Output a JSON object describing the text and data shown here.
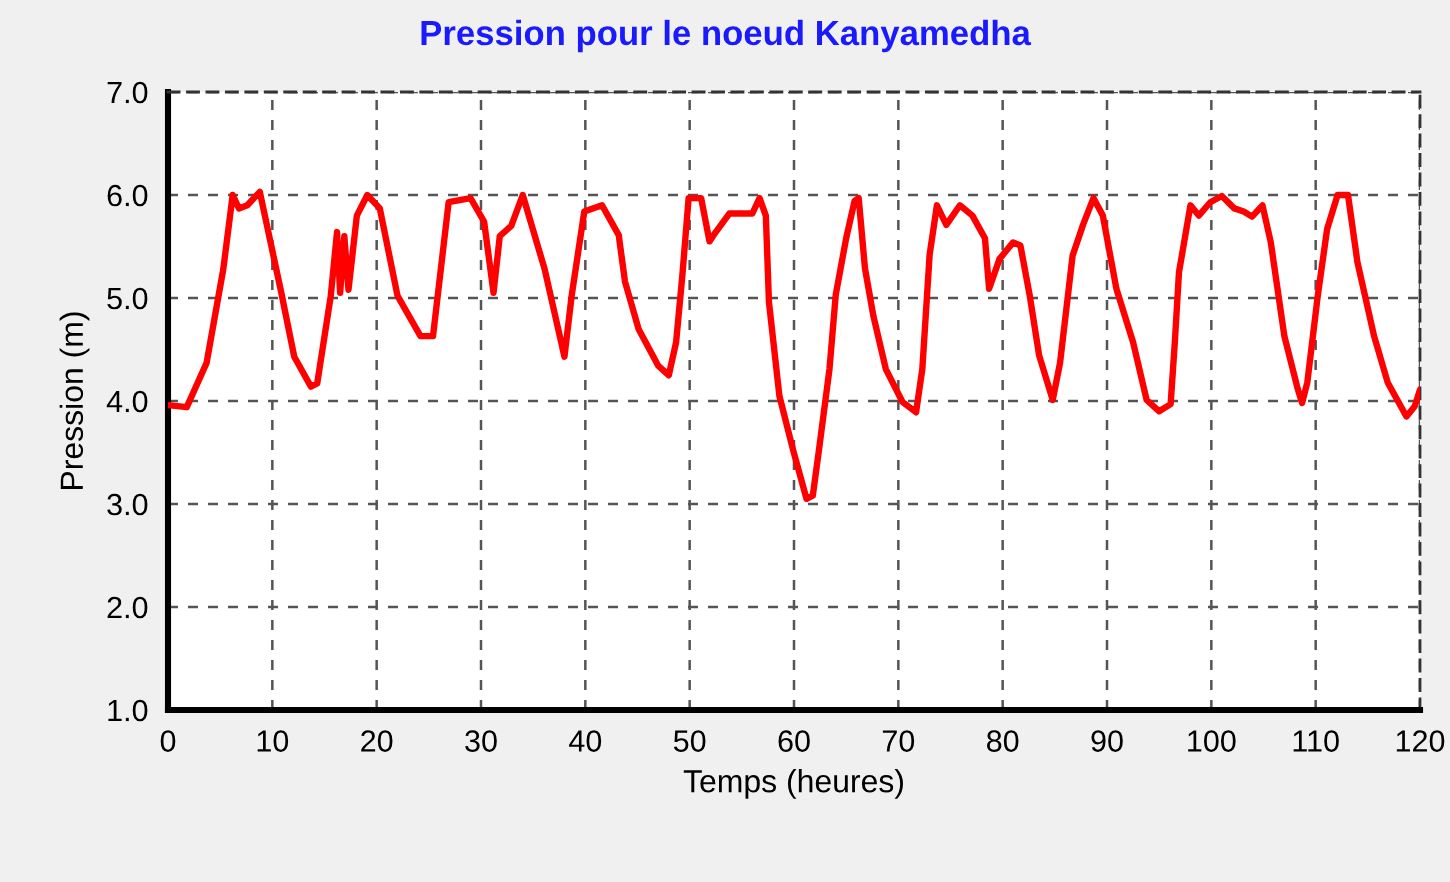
{
  "chart_data": {
    "type": "line",
    "title": "Pression pour le noeud Kanyamedha",
    "xlabel": "Temps (heures)",
    "ylabel": "Pression (m)",
    "xlim": [
      0,
      120
    ],
    "xticks": [
      0,
      10,
      20,
      30,
      40,
      50,
      60,
      70,
      80,
      90,
      100,
      110,
      120
    ],
    "ylim": [
      1,
      7
    ],
    "yticks": [
      {
        "value": 1,
        "label": "1.0"
      },
      {
        "value": 2,
        "label": "2.0"
      },
      {
        "value": 3,
        "label": "3.0"
      },
      {
        "value": 4,
        "label": "4.0"
      },
      {
        "value": 5,
        "label": "5.0"
      },
      {
        "value": 6,
        "label": "6.0"
      },
      {
        "value": 7,
        "label": "7.0"
      }
    ],
    "grid": true,
    "line_style": "solid",
    "series": [
      {
        "color": "#ff0000",
        "x": [
          0,
          1.8,
          3.7,
          5.3,
          6.2,
          6.8,
          7.6,
          8.8,
          10.8,
          12.1,
          13.7,
          14.3,
          15.6,
          16.2,
          16.5,
          16.9,
          17.3,
          18.1,
          19.1,
          20.3,
          22,
          24.2,
          25.4,
          26.9,
          29,
          30.3,
          31.2,
          31.8,
          32.9,
          34,
          36.1,
          38,
          38.7,
          39.9,
          41.6,
          43.2,
          43.8,
          45.1,
          47,
          48,
          48.7,
          49.3,
          49.9,
          51.1,
          51.9,
          52.5,
          53.8,
          56,
          56.7,
          57.3,
          57.6,
          58.6,
          59.9,
          61.2,
          61.8,
          62.4,
          63.4,
          64,
          65,
          65.8,
          66.2,
          66.8,
          67.6,
          68.8,
          70.4,
          71.7,
          72.3,
          73,
          73.7,
          74.6,
          75.9,
          77.1,
          78.3,
          78.7,
          79.7,
          81,
          81.7,
          82.6,
          83.5,
          84.8,
          85.5,
          86.7,
          87.7,
          88.7,
          89.6,
          90.9,
          92.5,
          93.8,
          95,
          96.1,
          96.5,
          96.9,
          98,
          98.8,
          99.9,
          101,
          102.2,
          103.1,
          103.9,
          104.9,
          105.7,
          107,
          108.3,
          108.7,
          109.2,
          110.2,
          111.1,
          112.1,
          113.1,
          114,
          115.6,
          116.9,
          118.7,
          119.5,
          120
        ],
        "values": [
          3.96,
          3.94,
          4.37,
          5.28,
          6.0,
          5.87,
          5.9,
          6.03,
          5.08,
          4.43,
          4.14,
          4.17,
          5.02,
          5.64,
          5.05,
          5.6,
          5.08,
          5.8,
          6.0,
          5.87,
          5.02,
          4.63,
          4.63,
          5.93,
          5.97,
          5.74,
          5.05,
          5.6,
          5.7,
          6.0,
          5.28,
          4.43,
          5.03,
          5.84,
          5.9,
          5.61,
          5.16,
          4.7,
          4.34,
          4.25,
          4.57,
          5.22,
          5.97,
          5.97,
          5.55,
          5.64,
          5.82,
          5.82,
          5.97,
          5.8,
          4.96,
          4.05,
          3.53,
          3.05,
          3.08,
          3.53,
          4.31,
          5.03,
          5.58,
          5.94,
          5.97,
          5.29,
          4.83,
          4.31,
          3.99,
          3.89,
          4.31,
          5.42,
          5.9,
          5.71,
          5.9,
          5.8,
          5.58,
          5.09,
          5.38,
          5.54,
          5.51,
          5.02,
          4.44,
          4.01,
          4.37,
          5.41,
          5.71,
          5.97,
          5.8,
          5.09,
          4.57,
          4.01,
          3.9,
          3.97,
          4.57,
          5.25,
          5.9,
          5.8,
          5.93,
          5.99,
          5.87,
          5.84,
          5.79,
          5.9,
          5.54,
          4.63,
          4.11,
          3.98,
          4.18,
          5.02,
          5.67,
          6.0,
          6.0,
          5.35,
          4.63,
          4.18,
          3.85,
          3.95,
          4.11
        ]
      }
    ]
  }
}
